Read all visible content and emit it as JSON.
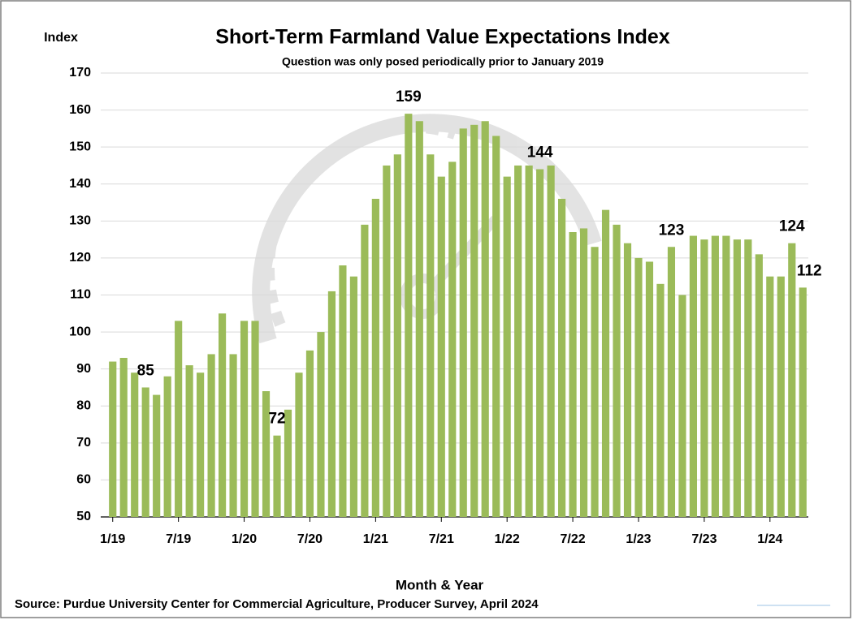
{
  "chart_data": {
    "type": "bar",
    "title": "Short-Term Farmland Value Expectations Index",
    "subtitle": "Question was only posed periodically prior to January 2019",
    "y_label": "Index",
    "x_label": "Month & Year",
    "source": "Source: Purdue University Center for Commercial Agriculture, Producer Survey, April 2024",
    "color": "#9bbb59",
    "grid": true,
    "ylim": [
      50,
      170
    ],
    "yticks": [
      50,
      60,
      70,
      80,
      90,
      100,
      110,
      120,
      130,
      140,
      150,
      160,
      170
    ],
    "categories": [
      "1/19",
      null,
      null,
      null,
      null,
      null,
      "7/19",
      null,
      null,
      null,
      null,
      null,
      "1/20",
      null,
      null,
      null,
      null,
      null,
      "7/20",
      null,
      null,
      null,
      null,
      null,
      "1/21",
      null,
      null,
      null,
      null,
      null,
      "7/21",
      null,
      null,
      null,
      null,
      null,
      "1/22",
      null,
      null,
      null,
      null,
      null,
      "7/22",
      null,
      null,
      null,
      null,
      null,
      "1/23",
      null,
      null,
      null,
      null,
      null,
      "7/23",
      null,
      null,
      null,
      null,
      null,
      "1/24",
      null,
      null,
      null
    ],
    "values": [
      92,
      93,
      89,
      85,
      83,
      88,
      103,
      91,
      89,
      94,
      105,
      94,
      103,
      103,
      84,
      72,
      79,
      89,
      95,
      100,
      111,
      118,
      115,
      129,
      136,
      145,
      148,
      159,
      157,
      148,
      142,
      146,
      155,
      156,
      157,
      153,
      142,
      145,
      145,
      144,
      145,
      136,
      127,
      128,
      123,
      133,
      129,
      124,
      120,
      119,
      113,
      123,
      110,
      126,
      125,
      126,
      126,
      125,
      125,
      121,
      115,
      115,
      124,
      112
    ],
    "value_labels": [
      null,
      null,
      null,
      "85",
      null,
      null,
      null,
      null,
      null,
      null,
      null,
      null,
      null,
      null,
      null,
      "72",
      null,
      null,
      null,
      null,
      null,
      null,
      null,
      null,
      null,
      null,
      null,
      "159",
      null,
      null,
      null,
      null,
      null,
      null,
      null,
      null,
      null,
      null,
      null,
      "144",
      null,
      null,
      null,
      null,
      null,
      null,
      null,
      null,
      null,
      null,
      null,
      "123",
      null,
      null,
      null,
      null,
      null,
      null,
      null,
      null,
      null,
      null,
      "124",
      "112"
    ]
  }
}
